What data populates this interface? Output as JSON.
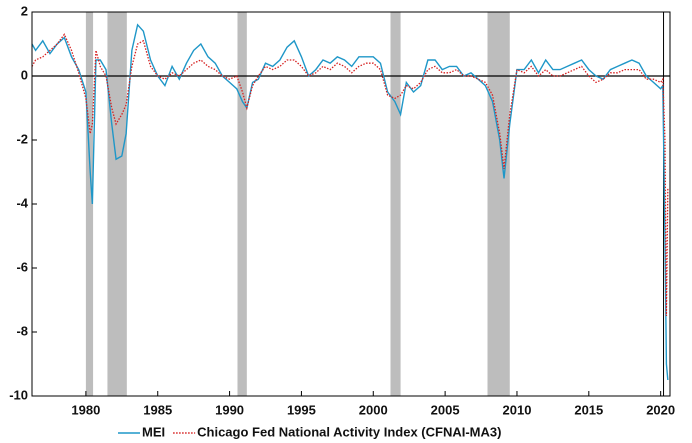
{
  "chart_data": {
    "type": "line",
    "x": [
      1976.25,
      1976.5,
      1977,
      1977.5,
      1978,
      1978.5,
      1979,
      1979.5,
      1980,
      1980.3,
      1980.45,
      1980.7,
      1981,
      1981.4,
      1981.8,
      1982.1,
      1982.5,
      1982.8,
      1983.2,
      1983.6,
      1984,
      1984.5,
      1985,
      1985.5,
      1986,
      1986.5,
      1987,
      1987.5,
      1988,
      1988.5,
      1989,
      1989.5,
      1990,
      1990.5,
      1990.9,
      1991.2,
      1991.6,
      1992,
      1992.5,
      1993,
      1993.5,
      1994,
      1994.5,
      1995,
      1995.5,
      1996,
      1996.5,
      1997,
      1997.5,
      1998,
      1998.5,
      1999,
      1999.5,
      2000,
      2000.5,
      2001,
      2001.5,
      2001.9,
      2002.3,
      2002.8,
      2003.3,
      2003.8,
      2004.3,
      2004.8,
      2005.3,
      2005.8,
      2006.3,
      2006.8,
      2007.3,
      2007.8,
      2008.3,
      2008.8,
      2009.1,
      2009.5,
      2010,
      2010.5,
      2011,
      2011.5,
      2012,
      2012.5,
      2013,
      2013.5,
      2014,
      2014.5,
      2015,
      2015.5,
      2016,
      2016.5,
      2017,
      2017.5,
      2018,
      2018.5,
      2019,
      2019.5,
      2020,
      2020.15,
      2020.3,
      2020.4,
      2020.5
    ],
    "series": [
      {
        "name": "MEI",
        "color": "#1f97c8",
        "dash": "solid",
        "values": [
          1.0,
          0.8,
          1.1,
          0.7,
          1.0,
          1.2,
          0.6,
          0.2,
          -0.5,
          -3.0,
          -4.0,
          0.5,
          0.5,
          0.2,
          -1.5,
          -2.6,
          -2.5,
          -1.8,
          0.8,
          1.6,
          1.4,
          0.5,
          0.0,
          -0.3,
          0.3,
          -0.1,
          0.4,
          0.8,
          1.0,
          0.6,
          0.4,
          0.0,
          -0.2,
          -0.4,
          -0.8,
          -1.0,
          -0.2,
          -0.1,
          0.4,
          0.3,
          0.5,
          0.9,
          1.1,
          0.6,
          0.0,
          0.2,
          0.5,
          0.4,
          0.6,
          0.5,
          0.3,
          0.6,
          0.6,
          0.6,
          0.4,
          -0.5,
          -0.8,
          -1.2,
          -0.2,
          -0.5,
          -0.3,
          0.5,
          0.5,
          0.2,
          0.3,
          0.3,
          0.0,
          0.1,
          -0.1,
          -0.3,
          -0.8,
          -2.0,
          -3.2,
          -1.5,
          0.2,
          0.2,
          0.5,
          0.1,
          0.5,
          0.2,
          0.2,
          0.3,
          0.4,
          0.5,
          0.2,
          0.0,
          -0.1,
          0.2,
          0.3,
          0.4,
          0.5,
          0.4,
          0.0,
          -0.2,
          -0.4,
          -0.3,
          -5.0,
          -9.0,
          -9.5
        ]
      },
      {
        "name": "Chicago Fed National Activity Index (CFNAI-MA3)",
        "color": "#d62020",
        "dash": "dotted",
        "values": [
          0.3,
          0.5,
          0.6,
          0.8,
          1.0,
          1.3,
          0.8,
          0.1,
          -0.7,
          -1.8,
          -1.5,
          0.8,
          0.3,
          0.0,
          -1.0,
          -1.5,
          -1.2,
          -0.9,
          0.3,
          1.0,
          1.1,
          0.3,
          0.0,
          -0.1,
          0.1,
          0.0,
          0.2,
          0.4,
          0.5,
          0.3,
          0.2,
          0.0,
          -0.1,
          0.0,
          -0.5,
          -1.0,
          -0.3,
          0.0,
          0.3,
          0.2,
          0.3,
          0.5,
          0.5,
          0.3,
          0.0,
          0.1,
          0.3,
          0.2,
          0.4,
          0.3,
          0.1,
          0.3,
          0.4,
          0.4,
          0.2,
          -0.6,
          -0.7,
          -0.6,
          -0.3,
          -0.4,
          -0.2,
          0.2,
          0.3,
          0.1,
          0.1,
          0.2,
          0.0,
          0.0,
          -0.1,
          -0.2,
          -0.6,
          -1.8,
          -2.9,
          -1.2,
          0.2,
          0.1,
          0.3,
          0.0,
          0.2,
          0.0,
          0.0,
          0.1,
          0.2,
          0.3,
          0.0,
          -0.2,
          -0.1,
          0.1,
          0.1,
          0.2,
          0.2,
          0.2,
          -0.1,
          -0.1,
          -0.2,
          -0.1,
          -2.0,
          -7.5,
          -3.5
        ]
      }
    ],
    "shaded_periods": [
      [
        1980.0,
        1980.5
      ],
      [
        1981.5,
        1982.85
      ],
      [
        1990.55,
        1991.2
      ],
      [
        2001.2,
        2001.9
      ],
      [
        2007.95,
        2009.5
      ]
    ],
    "shade_color": "#bdbdbd",
    "vline": 2020.2,
    "xlim": [
      1976.25,
      2020.65
    ],
    "xticks": [
      1980,
      1985,
      1990,
      1995,
      2000,
      2005,
      2010,
      2015,
      2020
    ],
    "ylim": [
      -10,
      2
    ],
    "yticks": [
      -10,
      -8,
      -6,
      -4,
      -2,
      0,
      2
    ],
    "grid": false
  }
}
